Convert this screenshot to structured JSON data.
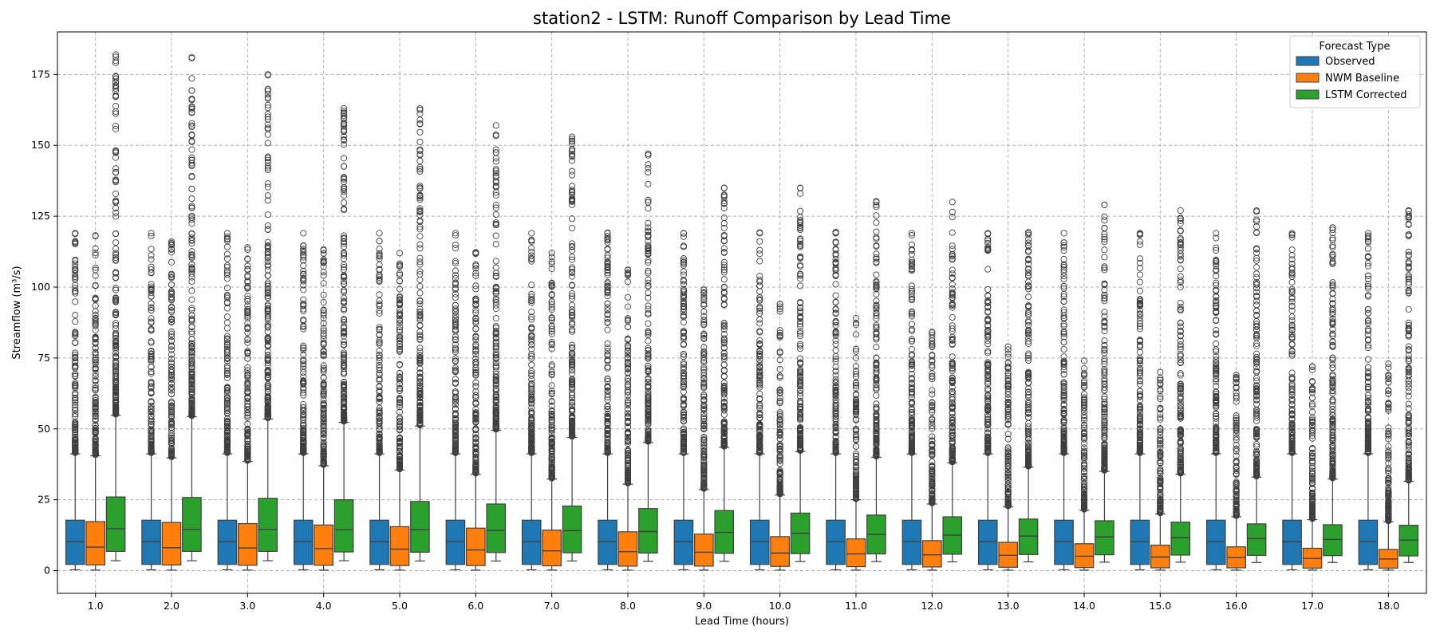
{
  "chart_data": {
    "type": "box",
    "title": "station2 - LSTM: Runoff Comparison by Lead Time",
    "xlabel": "Lead Time (hours)",
    "ylabel": "Streamflow (m³/s)",
    "ylim": [
      -8,
      190
    ],
    "yticks": [
      0,
      25,
      50,
      75,
      100,
      125,
      150,
      175
    ],
    "grid": true,
    "legend": {
      "title": "Forecast Type",
      "position": "top-right"
    },
    "categories": [
      "1.0",
      "2.0",
      "3.0",
      "4.0",
      "5.0",
      "6.0",
      "7.0",
      "8.0",
      "9.0",
      "10.0",
      "11.0",
      "12.0",
      "13.0",
      "14.0",
      "15.0",
      "16.0",
      "17.0",
      "18.0"
    ],
    "series": [
      {
        "name": "Observed",
        "color": "#1f77b4",
        "q1": [
          2.2,
          2.2,
          2.2,
          2.2,
          2.2,
          2.2,
          2.2,
          2.2,
          2.2,
          2.2,
          2.2,
          2.2,
          2.2,
          2.2,
          2.2,
          2.2,
          2.2,
          2.2
        ],
        "median": [
          10.2,
          10.2,
          10.2,
          10.2,
          10.2,
          10.2,
          10.2,
          10.2,
          10.2,
          10.2,
          10.2,
          10.2,
          10.2,
          10.2,
          10.2,
          10.2,
          10.2,
          10.2
        ],
        "q3": [
          17.8,
          17.8,
          17.8,
          17.8,
          17.8,
          17.8,
          17.8,
          17.8,
          17.8,
          17.8,
          17.8,
          17.8,
          17.8,
          17.8,
          17.8,
          17.8,
          17.8,
          17.8
        ],
        "whisker_low": [
          0.3,
          0.3,
          0.3,
          0.3,
          0.3,
          0.3,
          0.3,
          0.3,
          0.3,
          0.3,
          0.3,
          0.3,
          0.3,
          0.3,
          0.3,
          0.3,
          0.3,
          0.3
        ],
        "whisker_high": [
          41.2,
          41.2,
          41.2,
          41.2,
          41.2,
          41.2,
          41.2,
          41.2,
          41.2,
          41.2,
          41.2,
          41.2,
          41.2,
          41.2,
          41.2,
          41.2,
          41.2,
          41.2
        ],
        "max": [
          119,
          119,
          119,
          119,
          119,
          119,
          119,
          119,
          119,
          119,
          119,
          119,
          119,
          119,
          119,
          119,
          119,
          119
        ]
      },
      {
        "name": "NWM Baseline",
        "color": "#ff7f0e",
        "q1": [
          2.0,
          2.0,
          1.9,
          1.9,
          1.8,
          1.8,
          1.7,
          1.6,
          1.6,
          1.5,
          1.4,
          1.3,
          1.2,
          1.1,
          1.0,
          1.0,
          0.9,
          0.9
        ],
        "median": [
          8.3,
          8.1,
          8.0,
          7.8,
          7.6,
          7.3,
          7.0,
          6.7,
          6.5,
          6.2,
          5.9,
          5.6,
          5.4,
          5.1,
          4.8,
          4.6,
          4.3,
          4.1
        ],
        "q3": [
          17.3,
          17.0,
          16.6,
          16.1,
          15.5,
          15.0,
          14.3,
          13.7,
          12.9,
          12.0,
          11.2,
          10.6,
          10.0,
          9.5,
          9.0,
          8.4,
          7.9,
          7.5
        ],
        "whisker_low": [
          0.2,
          0.2,
          0.2,
          0.2,
          0.2,
          0.2,
          0.2,
          0.2,
          0.2,
          0.2,
          0.2,
          0.2,
          0.2,
          0.2,
          0.2,
          0.2,
          0.2,
          0.2
        ],
        "whisker_high": [
          40.5,
          39.8,
          38.5,
          37.0,
          35.5,
          34.0,
          32.3,
          30.5,
          28.6,
          26.7,
          25.0,
          23.5,
          22.5,
          21.3,
          20.0,
          19.0,
          18.0,
          17.2
        ],
        "max": [
          118,
          116,
          114,
          113,
          112,
          112,
          112,
          106,
          99,
          94,
          89,
          84,
          79,
          74,
          70,
          69,
          72,
          73
        ]
      },
      {
        "name": "LSTM Corrected",
        "color": "#2ca02c",
        "q1": [
          6.8,
          6.8,
          6.8,
          6.6,
          6.5,
          6.4,
          6.3,
          6.2,
          6.1,
          6.0,
          5.9,
          5.8,
          5.7,
          5.6,
          5.5,
          5.4,
          5.3,
          5.2
        ],
        "median": [
          14.8,
          14.6,
          14.6,
          14.4,
          14.4,
          14.2,
          14.1,
          13.8,
          13.5,
          13.2,
          12.8,
          12.5,
          12.2,
          11.9,
          11.6,
          11.3,
          11.0,
          10.8
        ],
        "q3": [
          26.0,
          25.8,
          25.5,
          25.0,
          24.4,
          23.5,
          22.8,
          21.9,
          21.2,
          20.3,
          19.6,
          19.0,
          18.2,
          17.6,
          17.1,
          16.5,
          16.2,
          16.0
        ],
        "whisker_low": [
          3.5,
          3.5,
          3.5,
          3.5,
          3.4,
          3.4,
          3.4,
          3.3,
          3.3,
          3.2,
          3.2,
          3.1,
          3.1,
          3.0,
          3.0,
          2.9,
          2.9,
          2.9
        ],
        "whisker_high": [
          54.8,
          54.3,
          53.5,
          52.3,
          51.0,
          49.5,
          47.0,
          45.2,
          43.5,
          42.0,
          40.0,
          38.0,
          36.5,
          35.0,
          34.0,
          33.0,
          32.3,
          31.5
        ],
        "max": [
          182,
          181,
          175,
          163,
          163,
          157,
          153,
          147,
          135,
          135,
          130,
          130,
          119,
          129,
          127,
          127,
          121,
          127
        ]
      }
    ]
  }
}
